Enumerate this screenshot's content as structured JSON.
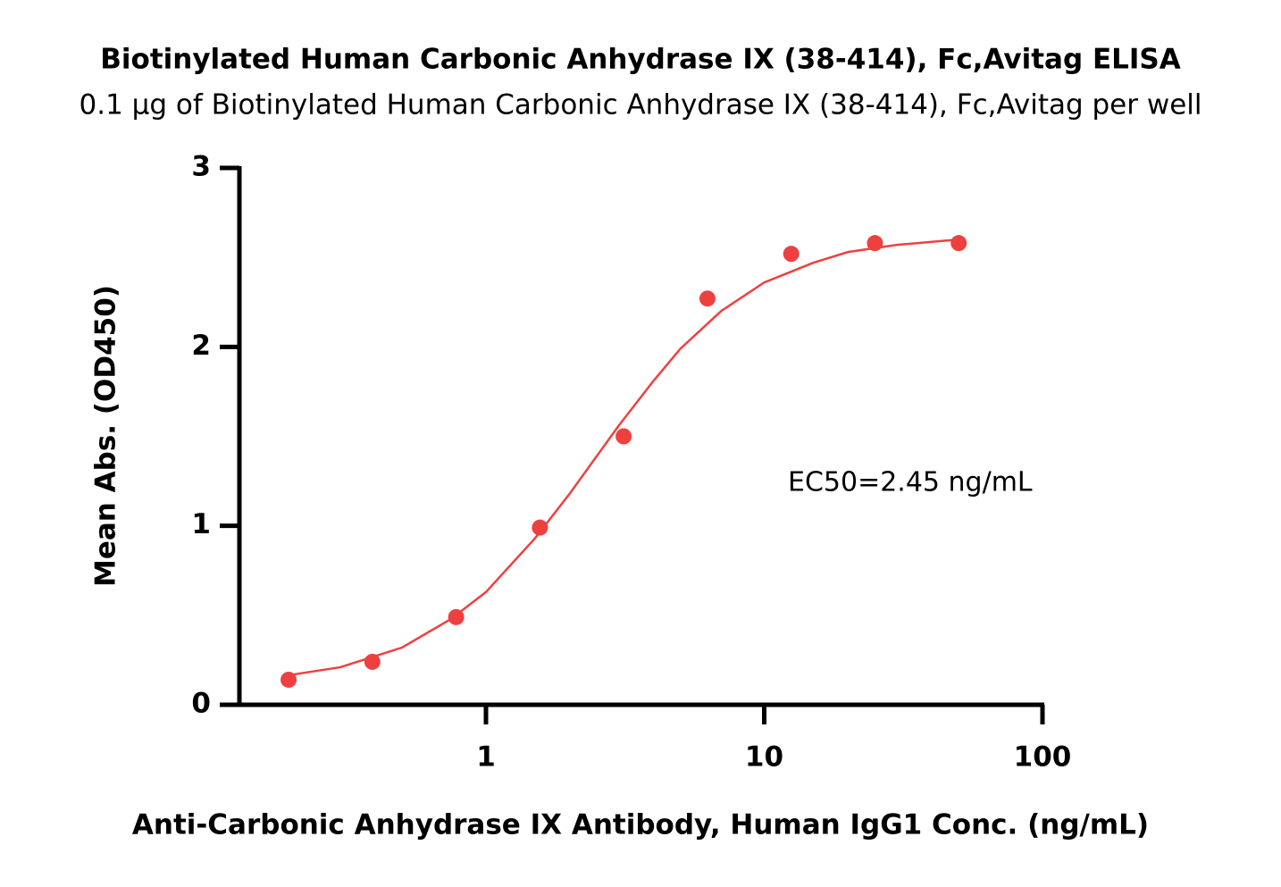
{
  "chart_data": {
    "type": "scatter",
    "title": "Biotinylated Human Carbonic Anhydrase IX (38-414), Fc,Avitag ELISA",
    "subtitle": "0.1 μg of Biotinylated Human Carbonic Anhydrase IX (38-414), Fc,Avitag per well",
    "x_label": "Anti-Carbonic Anhydrase IX Antibody, Human IgG1 Conc. (ng/mL)",
    "y_label": "Mean Abs. (OD450)",
    "annotation": "EC50=2.45 ng/mL",
    "x_scale": "log",
    "xlim": [
      0.13,
      100
    ],
    "xticks": [
      1,
      10,
      100
    ],
    "ylim": [
      0,
      3
    ],
    "yticks": [
      0,
      1,
      2,
      3
    ],
    "series": [
      {
        "type": "scatter",
        "color": "#ef4040",
        "x": [
          0.1953,
          0.3906,
          0.7813,
          1.5625,
          3.125,
          6.25,
          12.5,
          25,
          50
        ],
        "values": [
          0.14,
          0.24,
          0.49,
          0.99,
          1.5,
          2.27,
          2.52,
          2.58,
          2.58
        ]
      },
      {
        "type": "line",
        "color": "#ef4040",
        "x": [
          0.195,
          0.3,
          0.5,
          0.75,
          1,
          1.5,
          2,
          2.45,
          3,
          4,
          5,
          7,
          10,
          15,
          20,
          30,
          50
        ],
        "values": [
          0.165,
          0.21,
          0.32,
          0.48,
          0.63,
          0.93,
          1.18,
          1.37,
          1.56,
          1.81,
          1.99,
          2.2,
          2.36,
          2.47,
          2.53,
          2.57,
          2.6
        ]
      }
    ]
  }
}
